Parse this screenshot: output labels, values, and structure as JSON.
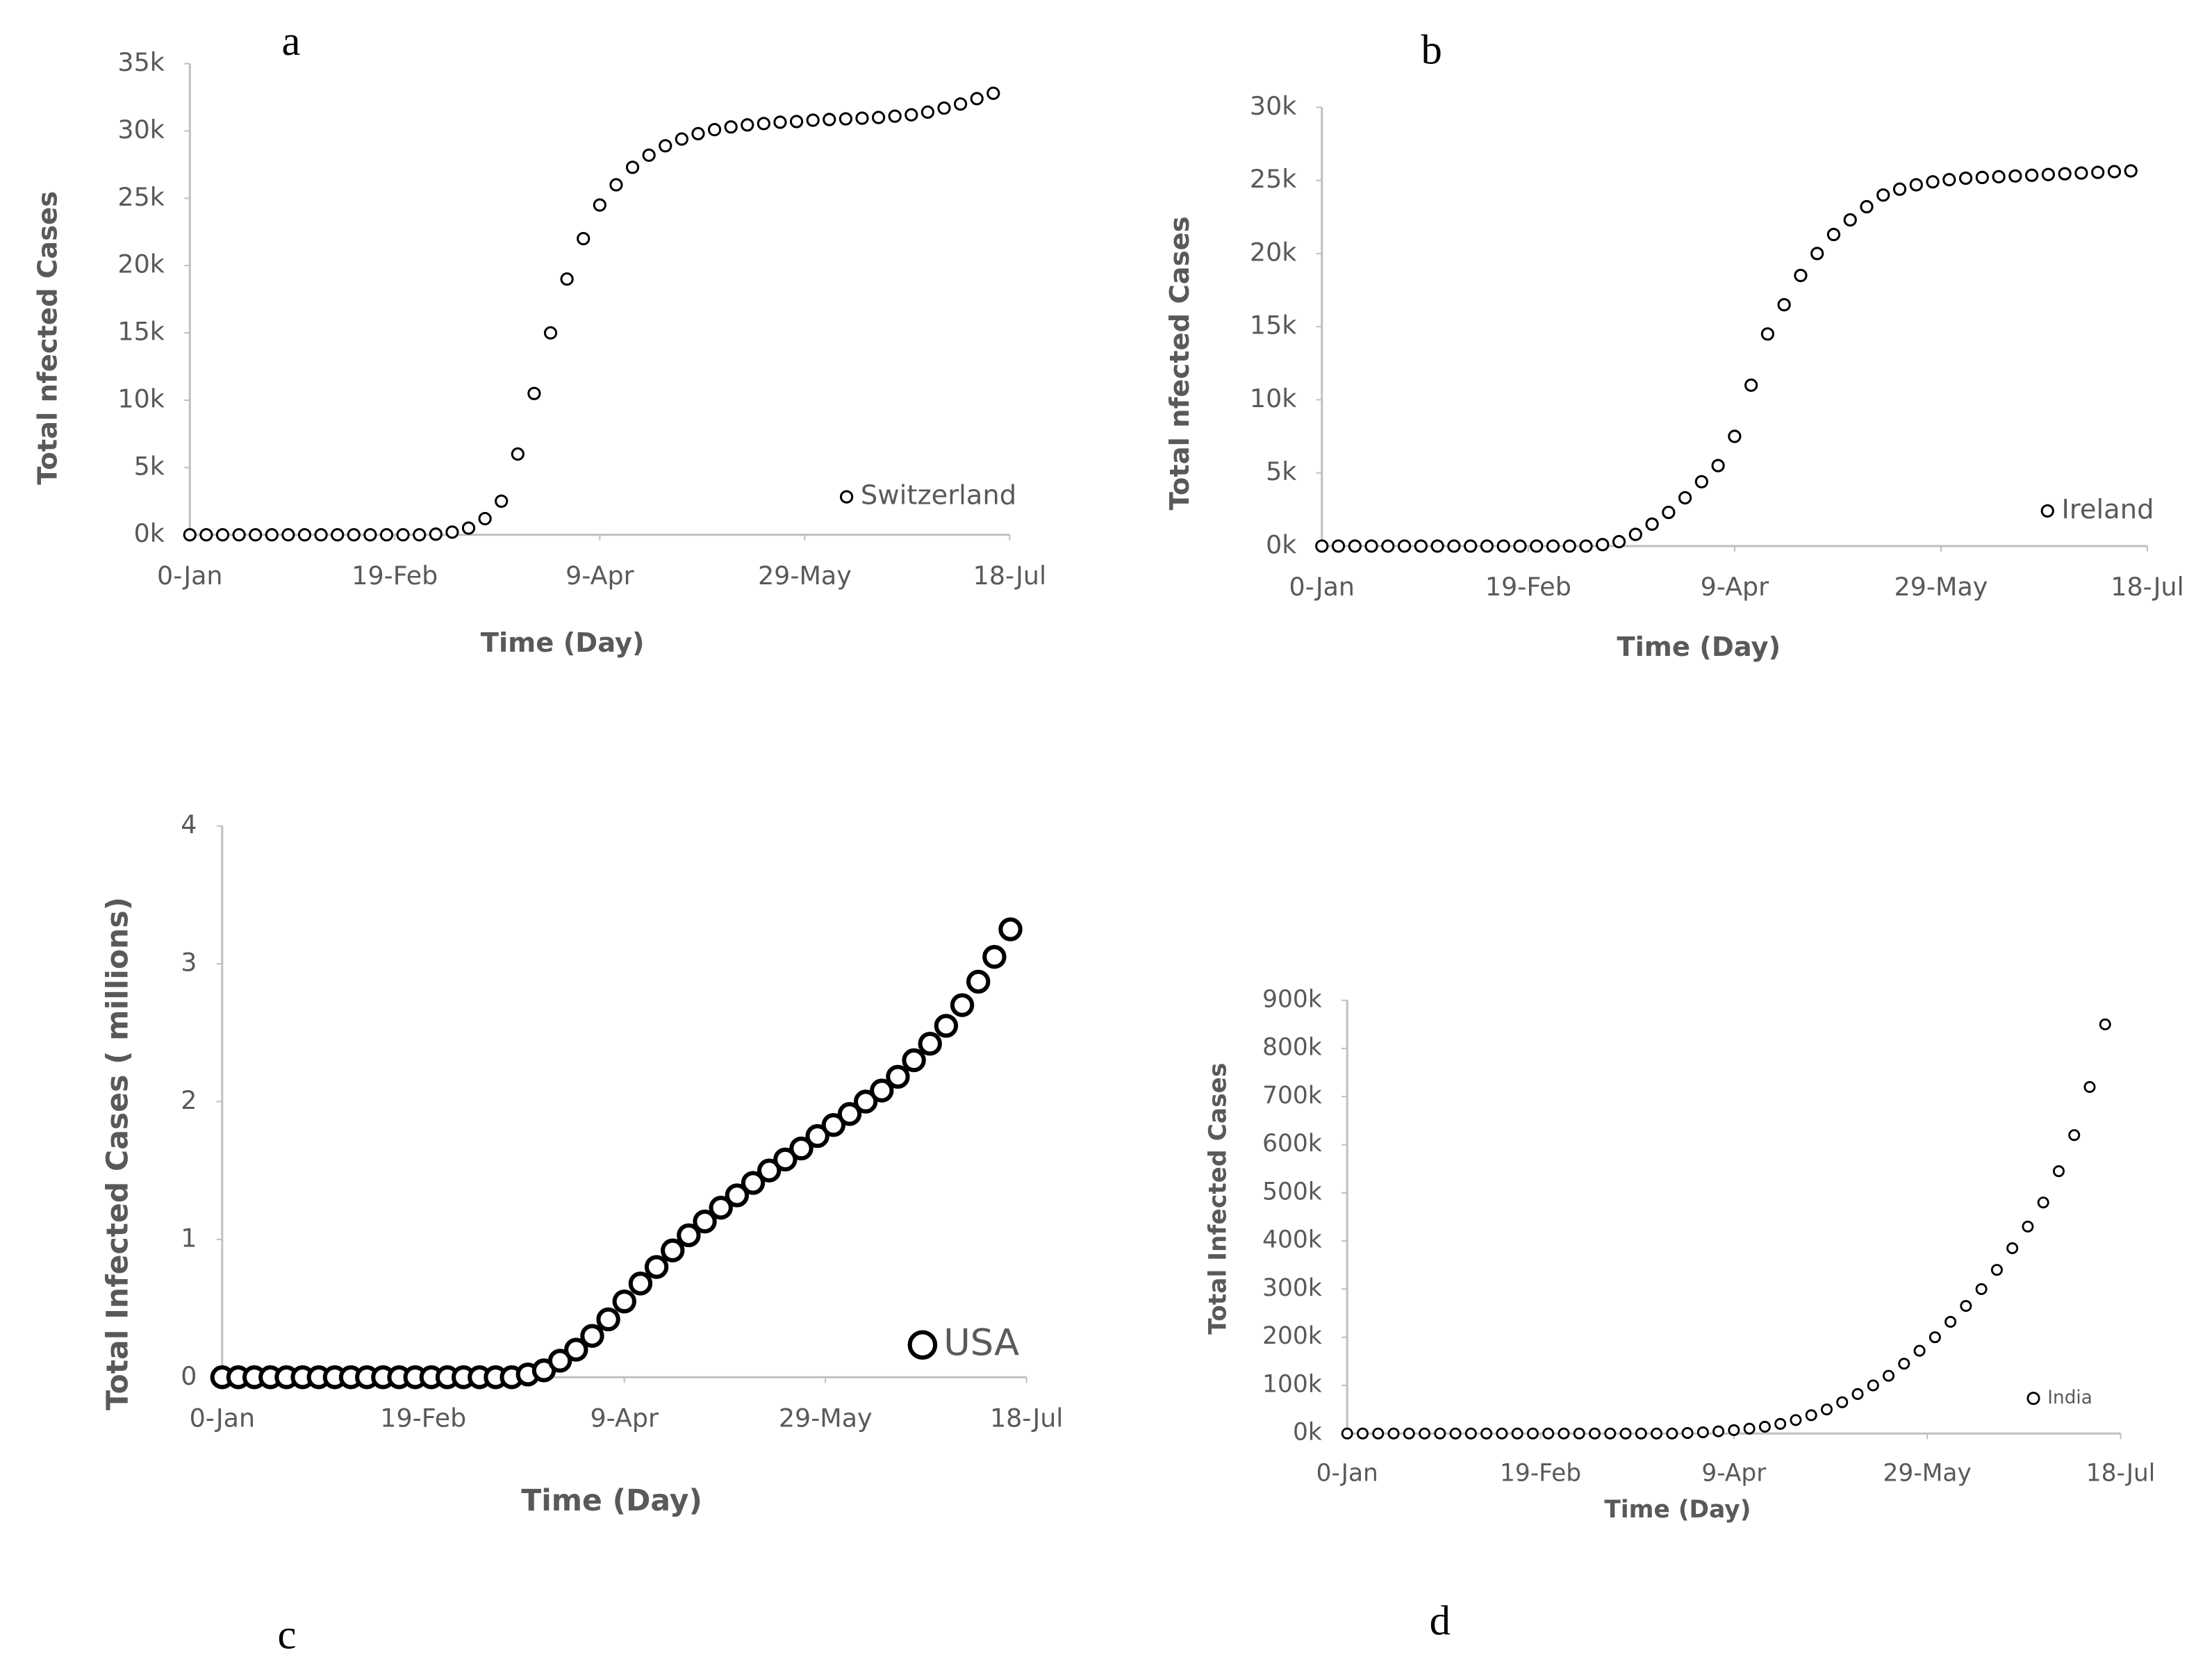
{
  "chart_data": [
    {
      "type": "scatter",
      "label": "a",
      "xlabel": "Time (Day)",
      "ylabel": "Total nfected Cases",
      "x": [
        0,
        4,
        8,
        12,
        16,
        20,
        24,
        28,
        32,
        36,
        40,
        44,
        48,
        52,
        56,
        60,
        64,
        68,
        72,
        76,
        80,
        84,
        88,
        92,
        96,
        100,
        104,
        108,
        112,
        116,
        120,
        124,
        128,
        132,
        136,
        140,
        144,
        148,
        152,
        156,
        160,
        164,
        168,
        172,
        176,
        180,
        184,
        188,
        192,
        196
      ],
      "series": [
        {
          "name": "Switzerland",
          "color": "#000000",
          "values": [
            0,
            0,
            0,
            0,
            0,
            0,
            0,
            0,
            0,
            0,
            0,
            0,
            0,
            0,
            0,
            50,
            200,
            500,
            1200,
            2500,
            6000,
            10500,
            15000,
            19000,
            22000,
            24500,
            26000,
            27300,
            28200,
            28900,
            29400,
            29800,
            30100,
            30300,
            30450,
            30550,
            30650,
            30700,
            30800,
            30850,
            30900,
            30950,
            31000,
            31100,
            31200,
            31400,
            31700,
            32000,
            32400,
            32800
          ]
        }
      ],
      "xlim": [
        0,
        200
      ],
      "xticks": [
        {
          "value": 0,
          "label": "0-Jan"
        },
        {
          "value": 50,
          "label": "19-Feb"
        },
        {
          "value": 100,
          "label": "9-Apr"
        },
        {
          "value": 150,
          "label": "29-May"
        },
        {
          "value": 200,
          "label": "18-Jul"
        }
      ],
      "ylim": [
        0,
        35000
      ],
      "yticks": [
        {
          "value": 0,
          "label": "0k"
        },
        {
          "value": 5000,
          "label": "5k"
        },
        {
          "value": 10000,
          "label": "10k"
        },
        {
          "value": 15000,
          "label": "15k"
        },
        {
          "value": 20000,
          "label": "20k"
        },
        {
          "value": 25000,
          "label": "25k"
        },
        {
          "value": 30000,
          "label": "30k"
        },
        {
          "value": 35000,
          "label": "35k"
        }
      ]
    },
    {
      "type": "scatter",
      "label": "b",
      "xlabel": "Time (Day)",
      "ylabel": "Total nfected Cases",
      "x": [
        0,
        4,
        8,
        12,
        16,
        20,
        24,
        28,
        32,
        36,
        40,
        44,
        48,
        52,
        56,
        60,
        64,
        68,
        72,
        76,
        80,
        84,
        88,
        92,
        96,
        100,
        104,
        108,
        112,
        116,
        120,
        124,
        128,
        132,
        136,
        140,
        144,
        148,
        152,
        156,
        160,
        164,
        168,
        172,
        176,
        180,
        184,
        188,
        192,
        196
      ],
      "series": [
        {
          "name": "Ireland",
          "color": "#000000",
          "values": [
            0,
            0,
            0,
            0,
            0,
            0,
            0,
            0,
            0,
            0,
            0,
            0,
            0,
            0,
            0,
            0,
            0,
            100,
            300,
            800,
            1500,
            2300,
            3300,
            4400,
            5500,
            7500,
            11000,
            14500,
            16500,
            18500,
            20000,
            21300,
            22300,
            23200,
            24000,
            24400,
            24700,
            24900,
            25050,
            25150,
            25200,
            25250,
            25300,
            25350,
            25400,
            25450,
            25500,
            25550,
            25600,
            25650
          ]
        }
      ],
      "xlim": [
        0,
        200
      ],
      "xticks": [
        {
          "value": 0,
          "label": "0-Jan"
        },
        {
          "value": 50,
          "label": "19-Feb"
        },
        {
          "value": 100,
          "label": "9-Apr"
        },
        {
          "value": 150,
          "label": "29-May"
        },
        {
          "value": 200,
          "label": "18-Jul"
        }
      ],
      "ylim": [
        0,
        30000
      ],
      "yticks": [
        {
          "value": 0,
          "label": "0k"
        },
        {
          "value": 5000,
          "label": "5k"
        },
        {
          "value": 10000,
          "label": "10k"
        },
        {
          "value": 15000,
          "label": "15k"
        },
        {
          "value": 20000,
          "label": "20k"
        },
        {
          "value": 25000,
          "label": "25k"
        },
        {
          "value": 30000,
          "label": "30k"
        }
      ]
    },
    {
      "type": "scatter",
      "label": "c",
      "xlabel": "Time (Day)",
      "ylabel": "Total Infected Cases ( millions)",
      "x": [
        0,
        4,
        8,
        12,
        16,
        20,
        24,
        28,
        32,
        36,
        40,
        44,
        48,
        52,
        56,
        60,
        64,
        68,
        72,
        76,
        80,
        84,
        88,
        92,
        96,
        100,
        104,
        108,
        112,
        116,
        120,
        124,
        128,
        132,
        136,
        140,
        144,
        148,
        152,
        156,
        160,
        164,
        168,
        172,
        176,
        180,
        184,
        188,
        192,
        196
      ],
      "series": [
        {
          "name": "USA",
          "color": "#000000",
          "values": [
            0,
            0,
            0,
            0,
            0,
            0,
            0,
            0,
            0,
            0,
            0,
            0,
            0,
            0,
            0,
            0,
            0,
            0,
            0,
            0.02,
            0.05,
            0.12,
            0.2,
            0.3,
            0.42,
            0.55,
            0.68,
            0.8,
            0.92,
            1.03,
            1.13,
            1.23,
            1.32,
            1.41,
            1.5,
            1.58,
            1.66,
            1.75,
            1.83,
            1.91,
            2.0,
            2.08,
            2.18,
            2.3,
            2.42,
            2.55,
            2.7,
            2.87,
            3.05,
            3.25
          ]
        }
      ],
      "xlim": [
        0,
        200
      ],
      "xticks": [
        {
          "value": 0,
          "label": "0-Jan"
        },
        {
          "value": 50,
          "label": "19-Feb"
        },
        {
          "value": 100,
          "label": "9-Apr"
        },
        {
          "value": 150,
          "label": "29-May"
        },
        {
          "value": 200,
          "label": "18-Jul"
        }
      ],
      "ylim": [
        0,
        4
      ],
      "yticks": [
        0,
        1,
        2,
        3,
        4
      ]
    },
    {
      "type": "scatter",
      "label": "d",
      "xlabel": "Time (Day)",
      "ylabel": "Total Infected Cases",
      "x": [
        0,
        4,
        8,
        12,
        16,
        20,
        24,
        28,
        32,
        36,
        40,
        44,
        48,
        52,
        56,
        60,
        64,
        68,
        72,
        76,
        80,
        84,
        88,
        92,
        96,
        100,
        104,
        108,
        112,
        116,
        120,
        124,
        128,
        132,
        136,
        140,
        144,
        148,
        152,
        156,
        160,
        164,
        168,
        172,
        176,
        180,
        184,
        188,
        192,
        196
      ],
      "series": [
        {
          "name": "India",
          "color": "#000000",
          "values": [
            0,
            0,
            0,
            0,
            0,
            0,
            0,
            0,
            0,
            0,
            0,
            0,
            0,
            0,
            0,
            0,
            0,
            0,
            0,
            0,
            0,
            0,
            1000,
            2500,
            4500,
            7000,
            10000,
            14000,
            20000,
            28000,
            38000,
            50000,
            65000,
            82000,
            100000,
            120000,
            145000,
            172000,
            200000,
            232000,
            265000,
            300000,
            340000,
            385000,
            430000,
            480000,
            545000,
            620000,
            720000,
            850000
          ]
        }
      ],
      "xlim": [
        0,
        200
      ],
      "xticks": [
        {
          "value": 0,
          "label": "0-Jan"
        },
        {
          "value": 50,
          "label": "19-Feb"
        },
        {
          "value": 100,
          "label": "9-Apr"
        },
        {
          "value": 150,
          "label": "29-May"
        },
        {
          "value": 200,
          "label": "18-Jul"
        }
      ],
      "ylim": [
        0,
        900000
      ],
      "yticks": [
        {
          "value": 0,
          "label": "0k"
        },
        {
          "value": 100000,
          "label": "100k"
        },
        {
          "value": 200000,
          "label": "200k"
        },
        {
          "value": 300000,
          "label": "300k"
        },
        {
          "value": 400000,
          "label": "400k"
        },
        {
          "value": 500000,
          "label": "500k"
        },
        {
          "value": 600000,
          "label": "600k"
        },
        {
          "value": 700000,
          "label": "700k"
        },
        {
          "value": 800000,
          "label": "800k"
        },
        {
          "value": 900000,
          "label": "900k"
        }
      ]
    }
  ]
}
